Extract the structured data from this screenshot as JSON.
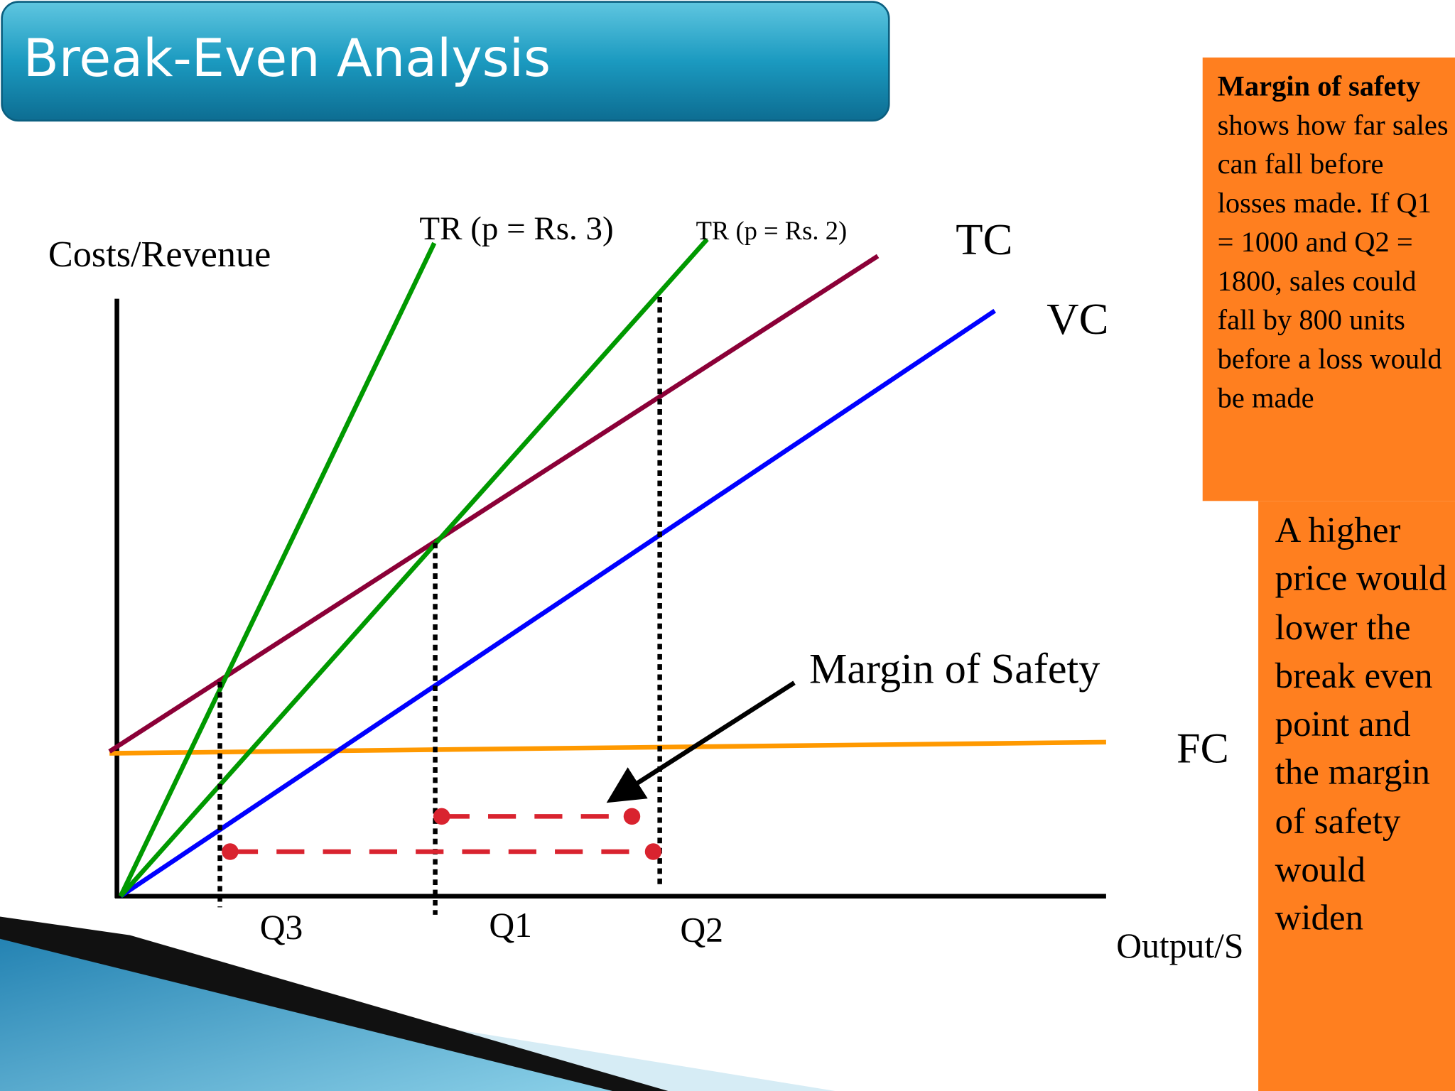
{
  "header": {
    "title": "Break-Even Analysis"
  },
  "axes": {
    "y_label": "Costs/Revenue",
    "x_label": "Output/S"
  },
  "lines": {
    "tr3": "TR (p = Rs. 3)",
    "tr2": "TR (p = Rs. 2)",
    "tc": "TC",
    "vc": "VC",
    "fc": "FC"
  },
  "quantities": [
    "Q3",
    "Q1",
    "Q2"
  ],
  "annotation": "Margin of Safety",
  "note": {
    "bold": "Margin of safety",
    "text": " shows how far sales can fall before losses made. If Q1 = 1000 and Q2 = 1800, sales could fall by 800 units before a loss would be made"
  },
  "side_note": "A higher price would lower the break even point and the margin of safety would widen"
}
